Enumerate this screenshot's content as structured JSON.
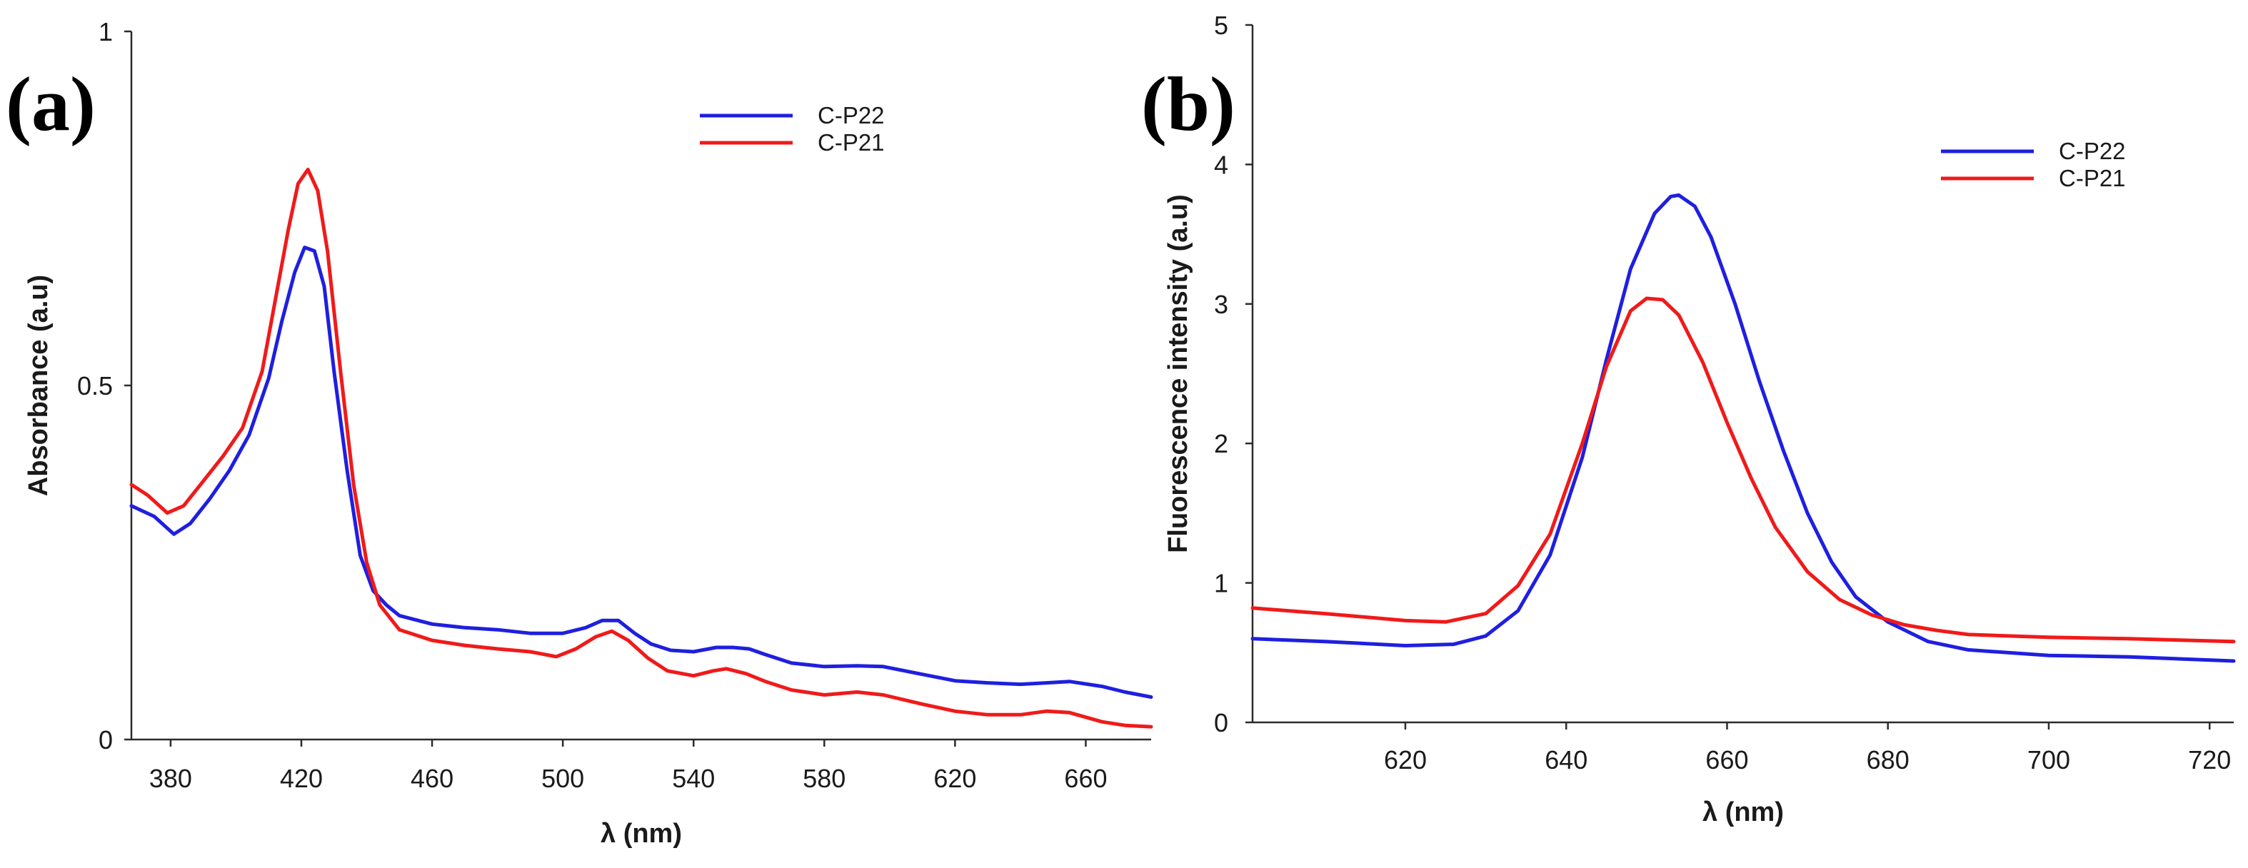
{
  "figure": {
    "panels": [
      "(a)",
      "(b)"
    ]
  },
  "chart_data": [
    {
      "type": "line",
      "panel_label": "(a)",
      "title": "",
      "xlabel": "λ (nm)",
      "ylabel": "Absorbance (a.u)",
      "xlim": [
        368,
        680
      ],
      "ylim": [
        0,
        1
      ],
      "xticks": [
        380,
        420,
        460,
        500,
        540,
        580,
        620,
        660
      ],
      "yticks": [
        0,
        0.5,
        1
      ],
      "legend_position": "top-right",
      "series": [
        {
          "name": "C-P22",
          "color": "#1f1fe0",
          "x": [
            368,
            375,
            381,
            386,
            392,
            398,
            404,
            410,
            414,
            418,
            421,
            424,
            427,
            430,
            434,
            438,
            442,
            446,
            450,
            460,
            470,
            480,
            490,
            500,
            507,
            512,
            517,
            522,
            527,
            533,
            540,
            547,
            552,
            557,
            562,
            570,
            580,
            590,
            598,
            610,
            620,
            630,
            640,
            648,
            655,
            665,
            672,
            680
          ],
          "y": [
            0.33,
            0.315,
            0.29,
            0.305,
            0.34,
            0.38,
            0.43,
            0.51,
            0.59,
            0.66,
            0.695,
            0.69,
            0.64,
            0.52,
            0.38,
            0.26,
            0.21,
            0.19,
            0.175,
            0.163,
            0.158,
            0.155,
            0.15,
            0.15,
            0.158,
            0.168,
            0.168,
            0.15,
            0.135,
            0.126,
            0.124,
            0.13,
            0.13,
            0.128,
            0.12,
            0.108,
            0.103,
            0.104,
            0.103,
            0.092,
            0.083,
            0.08,
            0.078,
            0.08,
            0.082,
            0.075,
            0.067,
            0.06
          ]
        },
        {
          "name": "C-P21",
          "color": "#f01a1a",
          "x": [
            368,
            373,
            379,
            384,
            390,
            396,
            402,
            408,
            412,
            416,
            419,
            422,
            425,
            428,
            432,
            436,
            440,
            444,
            450,
            460,
            470,
            480,
            490,
            498,
            504,
            510,
            515,
            520,
            526,
            532,
            540,
            546,
            550,
            556,
            562,
            570,
            580,
            590,
            598,
            610,
            620,
            630,
            640,
            648,
            655,
            665,
            672,
            680
          ],
          "y": [
            0.36,
            0.345,
            0.32,
            0.33,
            0.365,
            0.4,
            0.44,
            0.52,
            0.62,
            0.72,
            0.785,
            0.805,
            0.775,
            0.69,
            0.52,
            0.36,
            0.25,
            0.19,
            0.155,
            0.14,
            0.133,
            0.128,
            0.124,
            0.117,
            0.128,
            0.145,
            0.153,
            0.14,
            0.115,
            0.097,
            0.09,
            0.097,
            0.1,
            0.093,
            0.082,
            0.07,
            0.063,
            0.067,
            0.063,
            0.05,
            0.04,
            0.035,
            0.035,
            0.04,
            0.038,
            0.025,
            0.02,
            0.018
          ]
        }
      ]
    },
    {
      "type": "line",
      "panel_label": "(b)",
      "title": "",
      "xlabel": "λ (nm)",
      "ylabel": "Fluorescence intensity (a.u)",
      "xlim": [
        601,
        723
      ],
      "ylim": [
        0,
        5
      ],
      "xticks": [
        620,
        640,
        660,
        680,
        700,
        720
      ],
      "yticks": [
        0,
        1,
        2,
        3,
        4,
        5
      ],
      "legend_position": "top-right",
      "series": [
        {
          "name": "C-P22",
          "color": "#1f1fe0",
          "x": [
            601,
            610,
            620,
            626,
            630,
            634,
            638,
            642,
            645,
            648,
            651,
            653,
            654,
            656,
            658,
            661,
            664,
            667,
            670,
            673,
            676,
            680,
            685,
            690,
            700,
            710,
            723
          ],
          "y": [
            0.6,
            0.58,
            0.55,
            0.56,
            0.62,
            0.8,
            1.2,
            1.9,
            2.6,
            3.25,
            3.65,
            3.77,
            3.78,
            3.7,
            3.48,
            3.0,
            2.45,
            1.95,
            1.5,
            1.15,
            0.9,
            0.72,
            0.58,
            0.52,
            0.48,
            0.47,
            0.44
          ]
        },
        {
          "name": "C-P21",
          "color": "#f01a1a",
          "x": [
            601,
            610,
            620,
            625,
            630,
            634,
            638,
            642,
            645,
            648,
            650,
            652,
            654,
            657,
            660,
            663,
            666,
            670,
            674,
            678,
            682,
            686,
            690,
            700,
            710,
            723
          ],
          "y": [
            0.82,
            0.78,
            0.73,
            0.72,
            0.78,
            0.98,
            1.35,
            2.0,
            2.55,
            2.95,
            3.04,
            3.03,
            2.92,
            2.58,
            2.15,
            1.75,
            1.4,
            1.08,
            0.88,
            0.77,
            0.7,
            0.66,
            0.63,
            0.61,
            0.6,
            0.58
          ]
        }
      ]
    }
  ]
}
